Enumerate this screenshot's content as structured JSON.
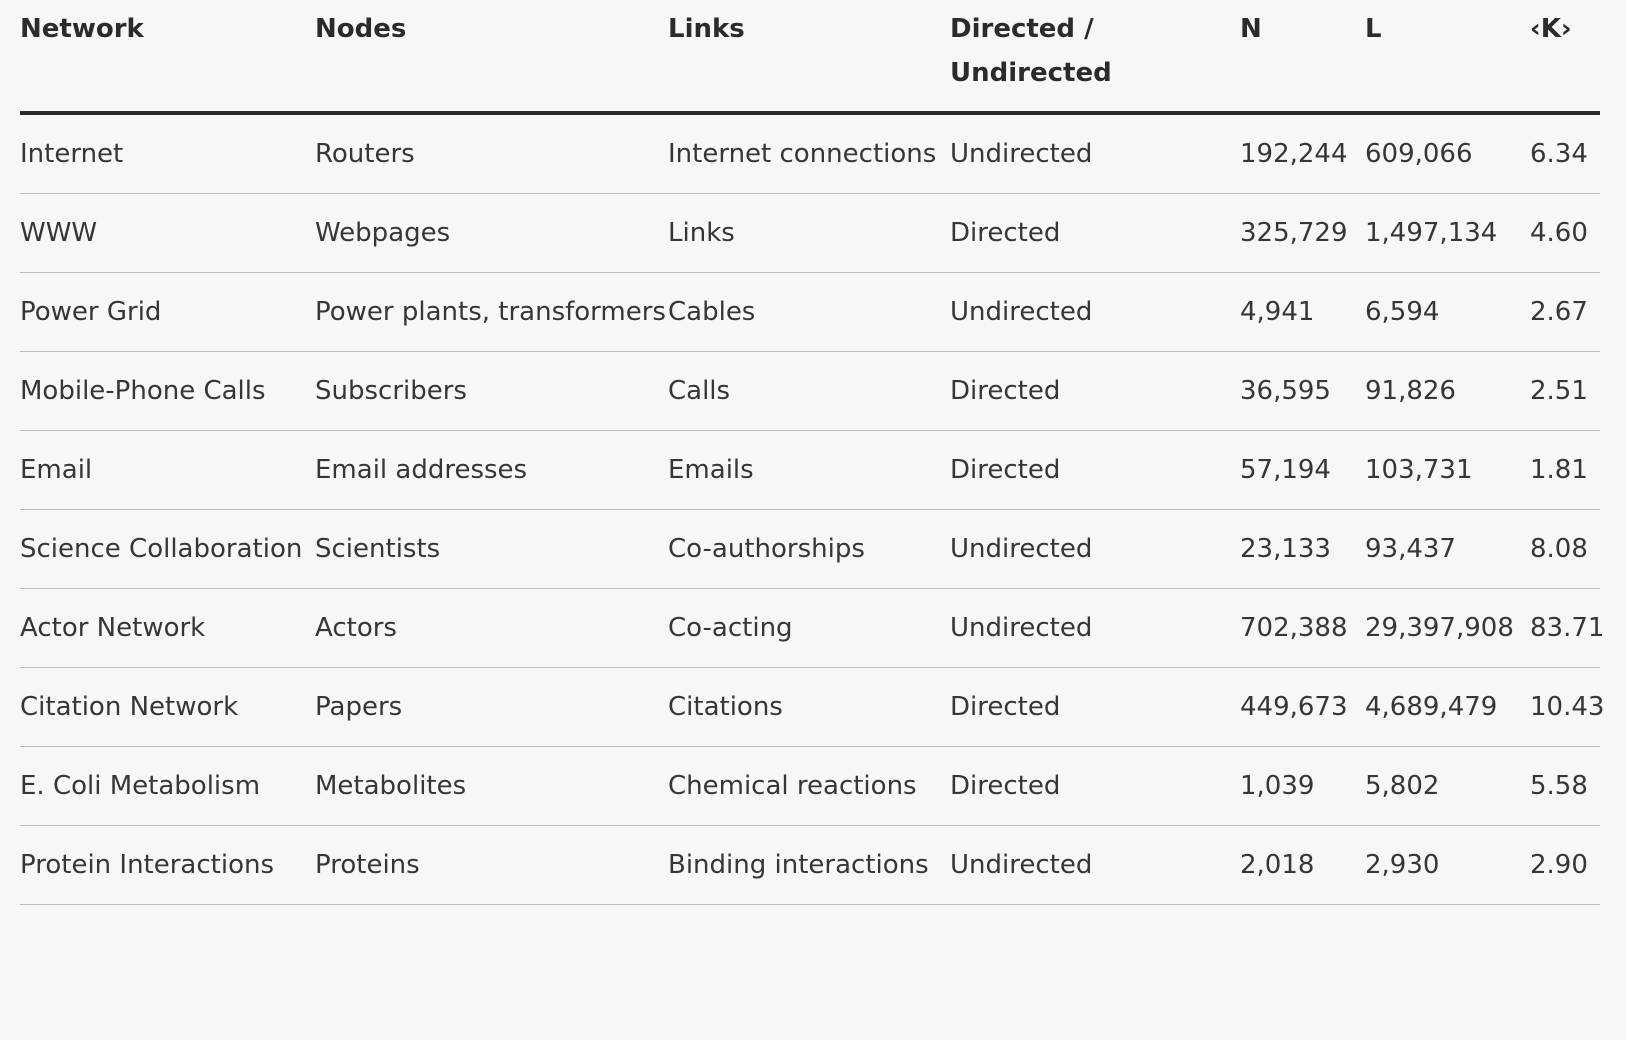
{
  "columns": [
    "Network",
    "Nodes",
    "Links",
    "Directed / Undirected",
    "N",
    "L",
    "‹K›"
  ],
  "rows": [
    [
      "Internet",
      "Routers",
      "Internet connections",
      "Undirected",
      "192,244",
      "609,066",
      "6.34"
    ],
    [
      "WWW",
      "Webpages",
      "Links",
      "Directed",
      "325,729",
      "1,497,134",
      "4.60"
    ],
    [
      "Power Grid",
      "Power plants, transformers",
      "Cables",
      "Undirected",
      "4,941",
      "6,594",
      "2.67"
    ],
    [
      "Mobile-Phone Calls",
      "Subscribers",
      "Calls",
      "Directed",
      "36,595",
      "91,826",
      "2.51"
    ],
    [
      "Email",
      "Email addresses",
      "Emails",
      "Directed",
      "57,194",
      "103,731",
      "1.81"
    ],
    [
      "Science Collaboration",
      "Scientists",
      "Co-authorships",
      "Undirected",
      "23,133",
      "93,437",
      "8.08"
    ],
    [
      "Actor Network",
      "Actors",
      "Co-acting",
      "Undirected",
      "702,388",
      "29,397,908",
      "83.71"
    ],
    [
      "Citation Network",
      "Papers",
      "Citations",
      "Directed",
      "449,673",
      "4,689,479",
      "10.43"
    ],
    [
      "E. Coli Metabolism",
      "Metabolites",
      "Chemical reactions",
      "Directed",
      "1,039",
      "5,802",
      "5.58"
    ],
    [
      "Protein Interactions",
      "Proteins",
      "Binding interactions",
      "Undirected",
      "2,018",
      "2,930",
      "2.90"
    ]
  ]
}
